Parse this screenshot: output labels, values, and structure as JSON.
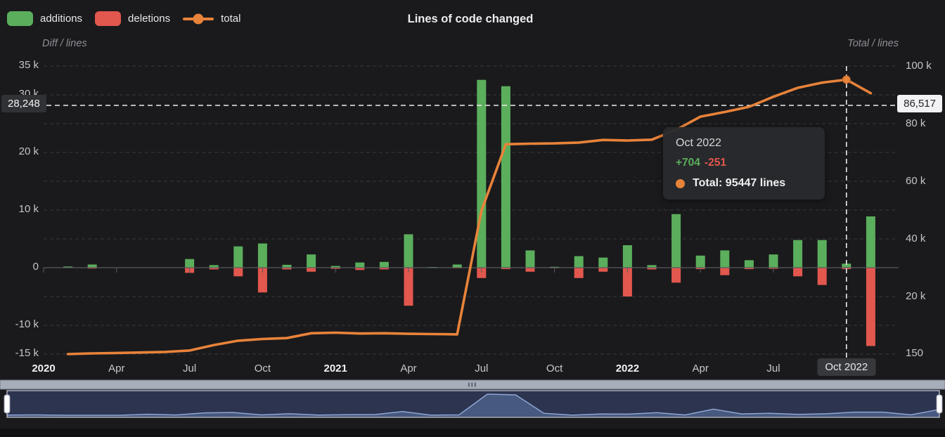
{
  "legend": {
    "items": [
      {
        "label": "additions",
        "type": "bar",
        "color": "#5bae5c"
      },
      {
        "label": "deletions",
        "type": "bar",
        "color": "#e2574e"
      },
      {
        "label": "total",
        "type": "line",
        "color": "#e8833a"
      }
    ]
  },
  "chart_data": {
    "type": "combo-bar-line",
    "title": "Lines of code changed",
    "left_axis": {
      "title": "Diff / lines",
      "ylim": [
        -15000,
        35000
      ],
      "grid_step": 5000,
      "ticks": [
        {
          "label": "35 k",
          "value": 35000
        },
        {
          "label": "30 k",
          "value": 30000
        },
        {
          "label": "20 k",
          "value": 20000
        },
        {
          "label": "10 k",
          "value": 10000
        },
        {
          "label": "0",
          "value": 0
        },
        {
          "label": "-10 k",
          "value": -10000
        },
        {
          "label": "-15 k",
          "value": -15000
        }
      ]
    },
    "right_axis": {
      "title": "Total / lines",
      "ylim": [
        150,
        100000
      ],
      "ticks": [
        {
          "label": "100 k",
          "value": 100000
        },
        {
          "label": "80 k",
          "value": 80000
        },
        {
          "label": "60 k",
          "value": 60000
        },
        {
          "label": "40 k",
          "value": 40000
        },
        {
          "label": "20 k",
          "value": 20000
        },
        {
          "label": "150",
          "value": 150
        }
      ]
    },
    "months": [
      "Jan 2020",
      "Feb 2020",
      "Mar 2020",
      "Apr 2020",
      "May 2020",
      "Jun 2020",
      "Jul 2020",
      "Aug 2020",
      "Sep 2020",
      "Oct 2020",
      "Nov 2020",
      "Dec 2020",
      "Jan 2021",
      "Feb 2021",
      "Mar 2021",
      "Apr 2021",
      "May 2021",
      "Jun 2021",
      "Jul 2021",
      "Aug 2021",
      "Sep 2021",
      "Oct 2021",
      "Nov 2021",
      "Dec 2021",
      "Jan 2022",
      "Feb 2022",
      "Mar 2022",
      "Apr 2022",
      "May 2022",
      "Jun 2022",
      "Jul 2022",
      "Aug 2022",
      "Sep 2022",
      "Oct 2022",
      "Nov 2022"
    ],
    "x_ticks": [
      {
        "label": "2020",
        "index": 0,
        "bold": true
      },
      {
        "label": "Apr",
        "index": 3
      },
      {
        "label": "Jul",
        "index": 6
      },
      {
        "label": "Oct",
        "index": 9
      },
      {
        "label": "2021",
        "index": 12,
        "bold": true
      },
      {
        "label": "Apr",
        "index": 15
      },
      {
        "label": "Jul",
        "index": 18
      },
      {
        "label": "Oct",
        "index": 21
      },
      {
        "label": "2022",
        "index": 24,
        "bold": true
      },
      {
        "label": "Apr",
        "index": 27
      },
      {
        "label": "Jul",
        "index": 30
      },
      {
        "label": "Oct 2022",
        "index": 33,
        "boxed": true
      }
    ],
    "series": [
      {
        "name": "additions",
        "type": "bar",
        "color": "#5bae5c",
        "values": [
          0,
          200,
          550,
          0,
          0,
          0,
          1500,
          450,
          3700,
          4200,
          500,
          2300,
          300,
          900,
          1000,
          5800,
          120,
          550,
          32600,
          31500,
          3000,
          150,
          2000,
          1750,
          3900,
          450,
          9300,
          2100,
          3000,
          1300,
          2300,
          4800,
          4800,
          704,
          8900
        ]
      },
      {
        "name": "deletions",
        "type": "bar",
        "color": "#e2574e",
        "values": [
          0,
          -60,
          -150,
          0,
          0,
          0,
          -900,
          -300,
          -1500,
          -4300,
          -300,
          -700,
          -200,
          -400,
          -300,
          -6600,
          -60,
          -100,
          -1800,
          -250,
          -700,
          -80,
          -1800,
          -700,
          -5000,
          -300,
          -2600,
          -250,
          -1300,
          -250,
          -200,
          -1500,
          -3000,
          -251,
          -13600
        ]
      },
      {
        "name": "total",
        "type": "line",
        "color": "#e8833a",
        "axis": "right",
        "values": [
          null,
          150,
          400,
          550,
          700,
          900,
          1400,
          3300,
          4800,
          5400,
          5700,
          7400,
          7600,
          7300,
          7400,
          7200,
          7100,
          7000,
          50000,
          73000,
          73200,
          73300,
          73600,
          74500,
          74300,
          74600,
          78000,
          82600,
          84200,
          86000,
          89500,
          92600,
          94400,
          95447,
          90700
        ]
      }
    ],
    "crosshair": {
      "index": 33,
      "x_label": "Oct 2022",
      "left_value": "28,248",
      "right_value": "86,517"
    },
    "tooltip": {
      "title": "Oct 2022",
      "additions": "+704",
      "deletions": "-251",
      "total_label": "Total: 95447 lines"
    },
    "grid": true,
    "legend_position": "top-left"
  },
  "navigator": {
    "description": "range selector showing full period selected",
    "handle_color": "#ffffff"
  }
}
